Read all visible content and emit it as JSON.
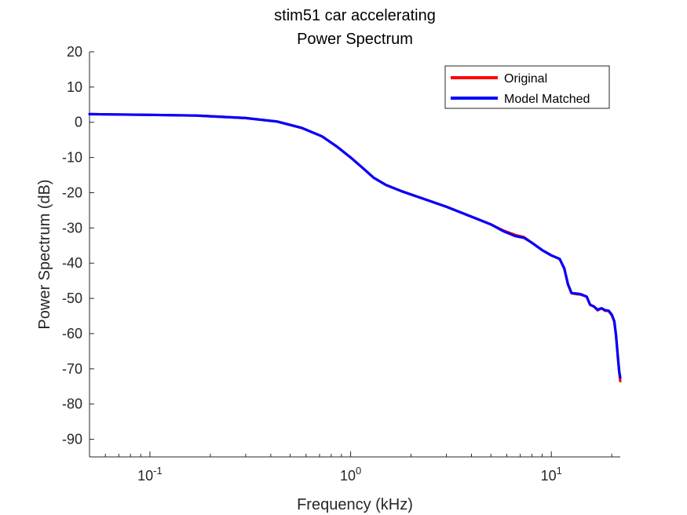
{
  "chart_data": {
    "type": "line",
    "title": "stim51 car accelerating",
    "subtitle": "Power Spectrum",
    "xlabel": "Frequency (kHz)",
    "ylabel": "Power Spectrum (dB)",
    "x_scale": "log",
    "xlim": [
      0.05,
      22.05
    ],
    "ylim": [
      -95,
      20
    ],
    "x_ticks": [
      {
        "value": 0.1,
        "base": "10",
        "exp": "-1"
      },
      {
        "value": 1,
        "base": "10",
        "exp": "0"
      },
      {
        "value": 10,
        "base": "10",
        "exp": "1"
      }
    ],
    "y_ticks": [
      20,
      10,
      0,
      -10,
      -20,
      -30,
      -40,
      -50,
      -60,
      -70,
      -80,
      -90
    ],
    "grid": false,
    "legend_position": "top-right",
    "series": [
      {
        "name": "Original",
        "color": "#ff0000",
        "x": [
          0.05,
          0.1,
          0.17,
          0.3,
          0.43,
          0.57,
          0.72,
          0.85,
          1.0,
          1.15,
          1.3,
          1.5,
          1.8,
          2.3,
          3.0,
          4.0,
          5.0,
          5.8,
          6.6,
          7.3,
          8.0,
          9.0,
          10.0,
          11.0,
          11.6,
          12.1,
          12.6,
          13.3,
          14.0,
          15.0,
          15.6,
          16.3,
          17.0,
          17.8,
          18.5,
          19.3,
          20.0,
          20.6,
          21.0,
          21.4,
          21.8,
          22.05
        ],
        "y": [
          2.3,
          2.1,
          1.9,
          1.2,
          0.2,
          -1.6,
          -4.0,
          -6.8,
          -10.0,
          -13.0,
          -15.7,
          -17.8,
          -19.6,
          -21.7,
          -24.0,
          -26.8,
          -29.0,
          -30.8,
          -32.0,
          -32.6,
          -34.2,
          -36.3,
          -37.8,
          -38.8,
          -41.5,
          -46.0,
          -48.5,
          -48.8,
          -48.9,
          -49.5,
          -51.8,
          -52.3,
          -53.4,
          -52.8,
          -53.5,
          -53.6,
          -54.8,
          -56.5,
          -60.5,
          -66.0,
          -71.0,
          -73.5
        ]
      },
      {
        "name": "Model Matched",
        "color": "#0000ff",
        "x": [
          0.05,
          0.1,
          0.17,
          0.3,
          0.43,
          0.57,
          0.72,
          0.85,
          1.0,
          1.15,
          1.3,
          1.5,
          1.8,
          2.3,
          3.0,
          4.0,
          5.0,
          5.8,
          6.6,
          7.3,
          8.0,
          9.0,
          10.0,
          11.0,
          11.6,
          12.1,
          12.6,
          13.3,
          14.0,
          15.0,
          15.6,
          16.3,
          17.0,
          17.8,
          18.5,
          19.3,
          20.0,
          20.6,
          21.0,
          21.4,
          21.8,
          22.05
        ],
        "y": [
          2.3,
          2.1,
          1.9,
          1.2,
          0.2,
          -1.6,
          -4.0,
          -6.8,
          -10.0,
          -13.0,
          -15.7,
          -17.8,
          -19.6,
          -21.7,
          -24.0,
          -26.8,
          -29.0,
          -31.0,
          -32.3,
          -32.8,
          -34.2,
          -36.3,
          -37.8,
          -38.8,
          -41.5,
          -46.0,
          -48.5,
          -48.6,
          -48.8,
          -49.5,
          -51.8,
          -52.3,
          -53.2,
          -52.8,
          -53.3,
          -53.5,
          -54.6,
          -56.5,
          -60.5,
          -66.0,
          -70.8,
          -72.5
        ]
      }
    ]
  }
}
